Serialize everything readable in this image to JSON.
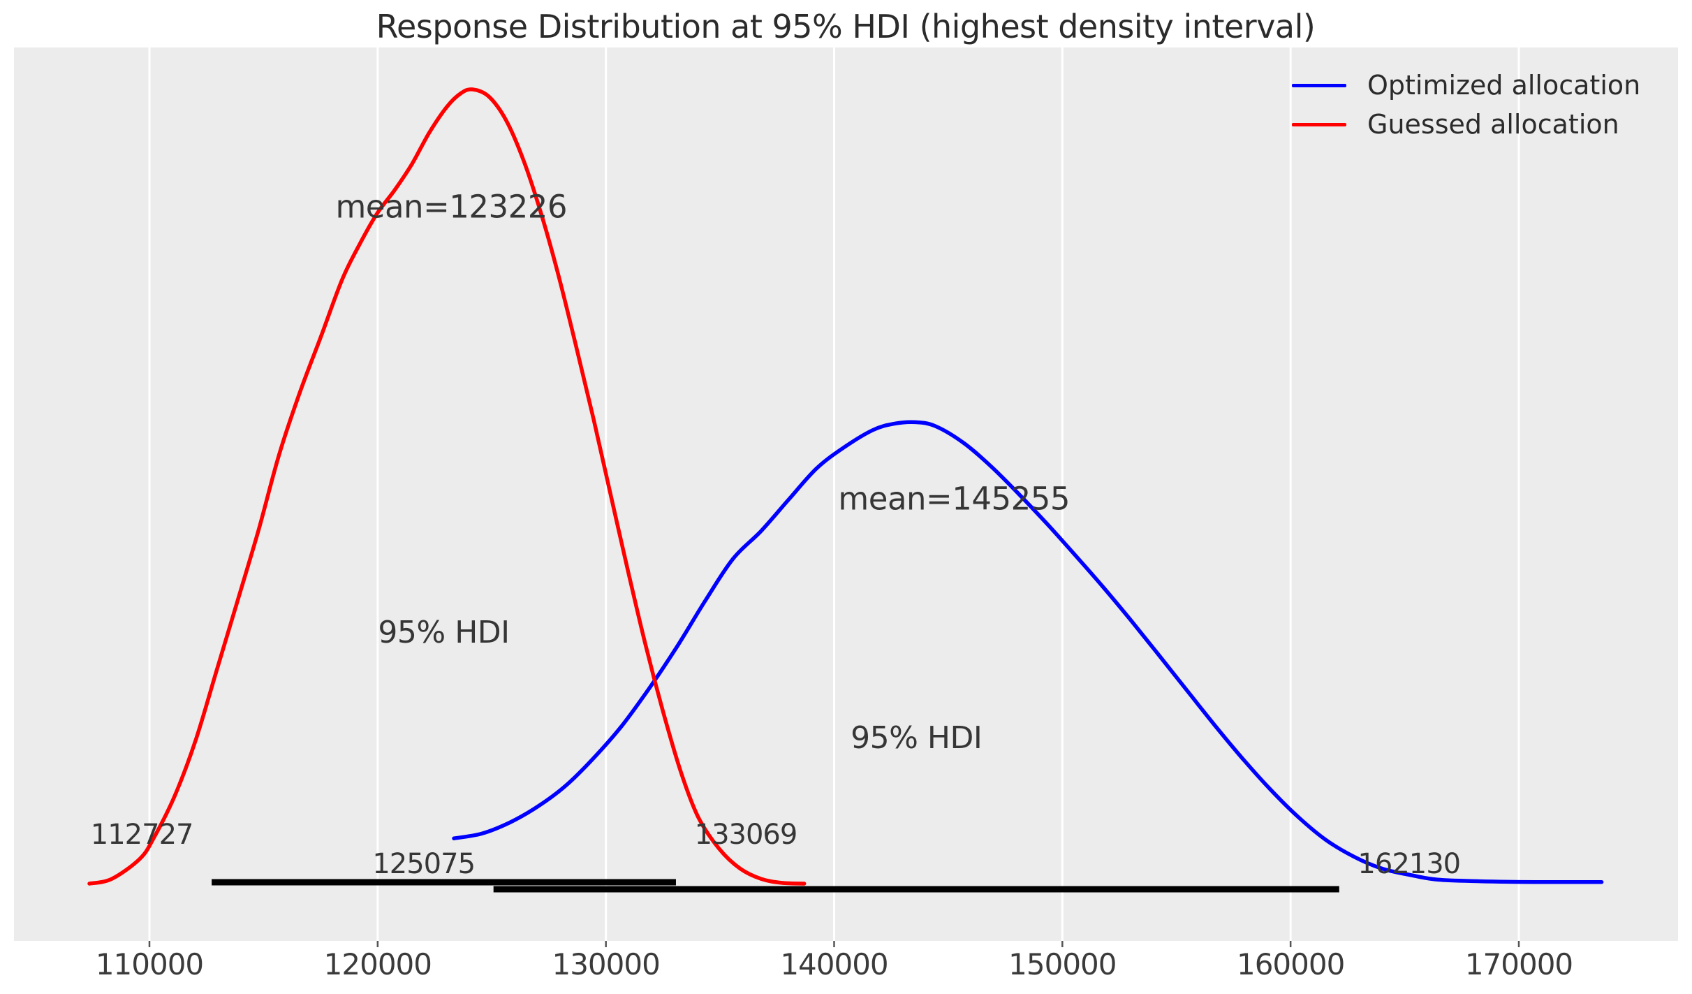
{
  "figure": {
    "title": "Response Distribution at 95% HDI (highest density interval)",
    "background": "#ffffff",
    "plot_background": "#ececec",
    "gridline_color": "#ffffff",
    "tick_color": "#555555",
    "text_color": "#363636",
    "hdi_bar_color": "#000000"
  },
  "legend": {
    "items": [
      {
        "label": "Optimized allocation",
        "color": "#0000ff"
      },
      {
        "label": "Guessed allocation",
        "color": "#ff0000"
      }
    ]
  },
  "chart_data": {
    "type": "line",
    "subtype": "kde-density-posterior",
    "title": "Response Distribution at 95% HDI (highest density interval)",
    "xlabel": "",
    "ylabel": "",
    "x_ticks": [
      110000,
      120000,
      130000,
      140000,
      150000,
      160000,
      170000
    ],
    "x_tick_labels": [
      "110000",
      "120000",
      "130000",
      "140000",
      "150000",
      "160000",
      "170000"
    ],
    "xlim": [
      104100,
      176900
    ],
    "grid": "vertical-white-gridlines",
    "legend_position": "upper right",
    "series": [
      {
        "name": "Optimized allocation",
        "color": "#0000ff",
        "mean": 145255,
        "mean_label": "mean=145255",
        "hdi": {
          "label": "95% HDI",
          "level": 0.95,
          "low": 125075,
          "high": 162130,
          "low_label": "125075",
          "high_label": "162130"
        },
        "points": [
          [
            123340,
            0.057
          ],
          [
            124560,
            0.063
          ],
          [
            125790,
            0.077
          ],
          [
            127010,
            0.097
          ],
          [
            128230,
            0.123
          ],
          [
            129460,
            0.158
          ],
          [
            130680,
            0.198
          ],
          [
            131900,
            0.246
          ],
          [
            133130,
            0.299
          ],
          [
            134350,
            0.356
          ],
          [
            135570,
            0.409
          ],
          [
            136800,
            0.444
          ],
          [
            138020,
            0.484
          ],
          [
            139240,
            0.523
          ],
          [
            140470,
            0.55
          ],
          [
            141690,
            0.571
          ],
          [
            142610,
            0.579
          ],
          [
            143560,
            0.581
          ],
          [
            144440,
            0.576
          ],
          [
            145670,
            0.555
          ],
          [
            146890,
            0.525
          ],
          [
            148110,
            0.49
          ],
          [
            149330,
            0.453
          ],
          [
            150550,
            0.414
          ],
          [
            151770,
            0.374
          ],
          [
            152990,
            0.332
          ],
          [
            154220,
            0.288
          ],
          [
            155440,
            0.244
          ],
          [
            156660,
            0.2
          ],
          [
            157880,
            0.158
          ],
          [
            159100,
            0.119
          ],
          [
            160330,
            0.084
          ],
          [
            161550,
            0.055
          ],
          [
            162770,
            0.034
          ],
          [
            164000,
            0.019
          ],
          [
            165220,
            0.011
          ],
          [
            166440,
            0.005
          ],
          [
            168280,
            0.003
          ],
          [
            170720,
            0.002
          ],
          [
            173630,
            0.002
          ]
        ]
      },
      {
        "name": "Guessed allocation",
        "color": "#ff0000",
        "mean": 123226,
        "mean_label": "mean=123226",
        "hdi": {
          "label": "95% HDI",
          "level": 0.95,
          "low": 112727,
          "high": 133069,
          "low_label": "112727",
          "high_label": "133069"
        },
        "points": [
          [
            107370,
            0.0
          ],
          [
            108350,
            0.006
          ],
          [
            109570,
            0.031
          ],
          [
            110180,
            0.057
          ],
          [
            111100,
            0.11
          ],
          [
            112020,
            0.18
          ],
          [
            112940,
            0.268
          ],
          [
            113860,
            0.356
          ],
          [
            114770,
            0.444
          ],
          [
            115690,
            0.541
          ],
          [
            116610,
            0.62
          ],
          [
            117530,
            0.69
          ],
          [
            118450,
            0.761
          ],
          [
            119210,
            0.805
          ],
          [
            119980,
            0.844
          ],
          [
            120740,
            0.873
          ],
          [
            121500,
            0.906
          ],
          [
            122270,
            0.946
          ],
          [
            123030,
            0.978
          ],
          [
            123640,
            0.995
          ],
          [
            124160,
            1.0
          ],
          [
            124870,
            0.991
          ],
          [
            125630,
            0.961
          ],
          [
            126400,
            0.91
          ],
          [
            127160,
            0.844
          ],
          [
            127930,
            0.765
          ],
          [
            128690,
            0.677
          ],
          [
            129460,
            0.585
          ],
          [
            130220,
            0.488
          ],
          [
            130990,
            0.391
          ],
          [
            131750,
            0.299
          ],
          [
            132520,
            0.215
          ],
          [
            133280,
            0.141
          ],
          [
            134040,
            0.084
          ],
          [
            134960,
            0.044
          ],
          [
            135880,
            0.019
          ],
          [
            136800,
            0.006
          ],
          [
            137710,
            0.001
          ],
          [
            138690,
            0.0
          ]
        ]
      }
    ]
  }
}
